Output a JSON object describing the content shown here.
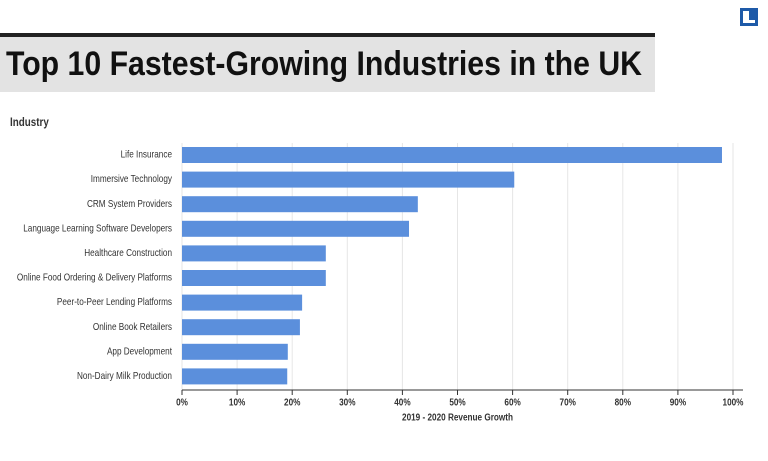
{
  "chart_data": {
    "type": "bar",
    "orientation": "horizontal",
    "title": "Top 10 Fastest-Growing Industries in the UK",
    "y_label": "Industry",
    "x_label": "2019 - 2020 Revenue Growth",
    "categories": [
      "Life Insurance",
      "Immersive Technology",
      "CRM System Providers",
      "Language Learning Software Developers",
      "Healthcare Construction",
      "Online Food Ordering & Delivery Platforms",
      "Peer-to-Peer Lending Platforms",
      "Online Book Retailers",
      "App Development",
      "Non-Dairy Milk Production"
    ],
    "values": [
      98,
      60.3,
      42.8,
      41.2,
      26.1,
      26.1,
      21.8,
      21.4,
      19.2,
      19.1
    ],
    "color": "#5b8fdc",
    "xlim": [
      0,
      100
    ],
    "xticks": [
      {
        "value": 0,
        "label": "0%"
      },
      {
        "value": 10,
        "label": "10%"
      },
      {
        "value": 20,
        "label": "20%"
      },
      {
        "value": 30,
        "label": "30%"
      },
      {
        "value": 40,
        "label": "40%"
      },
      {
        "value": 50,
        "label": "50%"
      },
      {
        "value": 60,
        "label": "60%"
      },
      {
        "value": 70,
        "label": "70%"
      },
      {
        "value": 80,
        "label": "80%"
      },
      {
        "value": 90,
        "label": "90%"
      },
      {
        "value": 100,
        "label": "100%"
      }
    ],
    "grid": true
  }
}
